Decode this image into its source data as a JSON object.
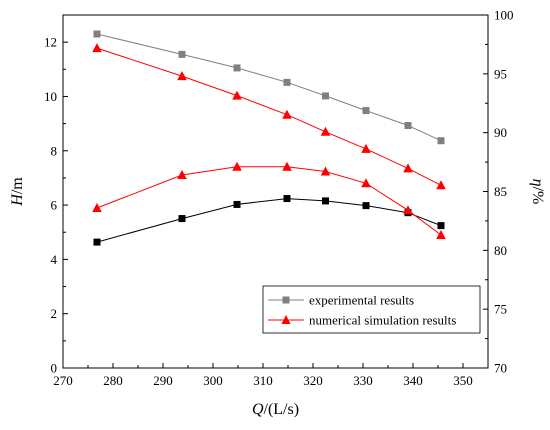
{
  "chart_data": {
    "type": "line",
    "x_axis": {
      "label_main": "Q",
      "label_unit": "/(L/s)",
      "range": [
        270,
        355
      ],
      "ticks": [
        270,
        280,
        290,
        300,
        310,
        320,
        330,
        340,
        350
      ]
    },
    "y_left": {
      "label_main": "H",
      "label_unit": "/m",
      "range": [
        0,
        13
      ],
      "ticks": [
        0,
        2,
        4,
        6,
        8,
        10,
        12
      ]
    },
    "y_right": {
      "label_main": "η",
      "label_unit": "/%",
      "range": [
        70,
        100
      ],
      "ticks": [
        70,
        75,
        80,
        85,
        90,
        95,
        100
      ]
    },
    "x": [
      276.8,
      293.8,
      304.8,
      314.8,
      322.5,
      330.6,
      339,
      345.6
    ],
    "series": [
      {
        "name": "experimental results",
        "group": "experimental",
        "axis": "left",
        "metric": "H",
        "marker": "square",
        "color": "#808080",
        "values": [
          12.3,
          11.55,
          11.05,
          10.52,
          10.02,
          9.48,
          8.93,
          8.37
        ]
      },
      {
        "name": "experimental results",
        "group": "experimental",
        "axis": "right",
        "metric": "eta",
        "marker": "square",
        "color": "#000000",
        "values": [
          80.7,
          82.7,
          83.9,
          84.4,
          84.2,
          83.8,
          83.2,
          82.1
        ]
      },
      {
        "name": "numerical simulation results",
        "group": "numerical",
        "axis": "left",
        "metric": "H",
        "marker": "triangle",
        "color": "#ff0000",
        "values": [
          11.78,
          10.75,
          10.03,
          9.33,
          8.7,
          8.07,
          7.35,
          6.73
        ]
      },
      {
        "name": "numerical simulation results",
        "group": "numerical",
        "axis": "right",
        "metric": "eta",
        "marker": "triangle",
        "color": "#ff0000",
        "values": [
          83.6,
          86.4,
          87.1,
          87.1,
          86.7,
          85.7,
          83.4,
          81.3
        ]
      }
    ],
    "legend": {
      "position": "bottom-right",
      "entries": [
        {
          "label": "experimental results",
          "marker": "square",
          "color": "#808080"
        },
        {
          "label": "numerical simulation results",
          "marker": "triangle",
          "color": "#ff0000"
        }
      ]
    },
    "grid": false
  }
}
